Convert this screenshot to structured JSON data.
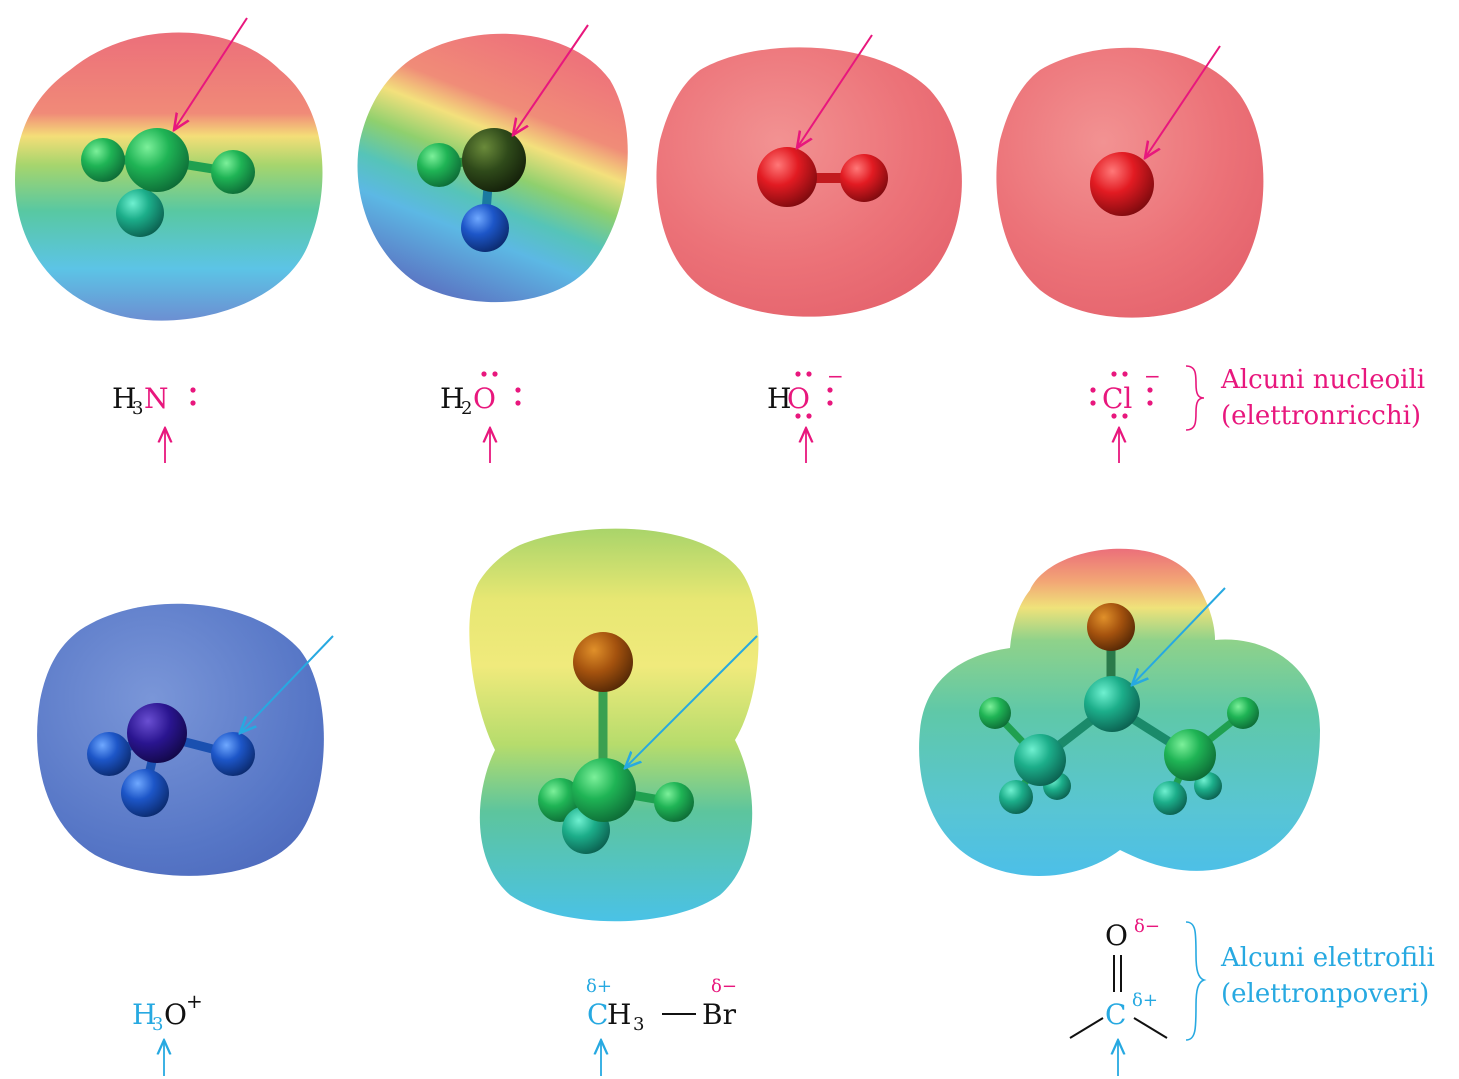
{
  "colors": {
    "nucleophile": "#e8177d",
    "electrophile": "#27a9e1",
    "text": "#111111"
  },
  "nucleophiles": {
    "label_line1": "Alcuni nucleoili",
    "label_line2": "(elettronricchi)",
    "items": [
      {
        "formula_prefix": "H",
        "sub": "3",
        "atom": "N",
        "charge": ""
      },
      {
        "formula_prefix": "H",
        "sub": "2",
        "atom": "O",
        "charge": ""
      },
      {
        "formula_prefix": "H",
        "sub": "",
        "atom": "O",
        "charge": "−"
      },
      {
        "formula_prefix": "",
        "sub": "",
        "atom": "Cl",
        "charge": "−"
      }
    ]
  },
  "electrophiles": {
    "label_line1": "Alcuni elettrofili",
    "label_line2": "(elettronpoveri)",
    "h3o": {
      "atom": "H",
      "sub": "3",
      "rest": "O",
      "charge": "+"
    },
    "ch3br": {
      "delta_plus": "δ+",
      "c": "C",
      "h": "H",
      "sub": "3",
      "br": "Br",
      "delta_minus": "δ−"
    },
    "carbonyl": {
      "o": "O",
      "delta_minus": "δ−",
      "c": "C",
      "delta_plus": "δ+"
    }
  }
}
